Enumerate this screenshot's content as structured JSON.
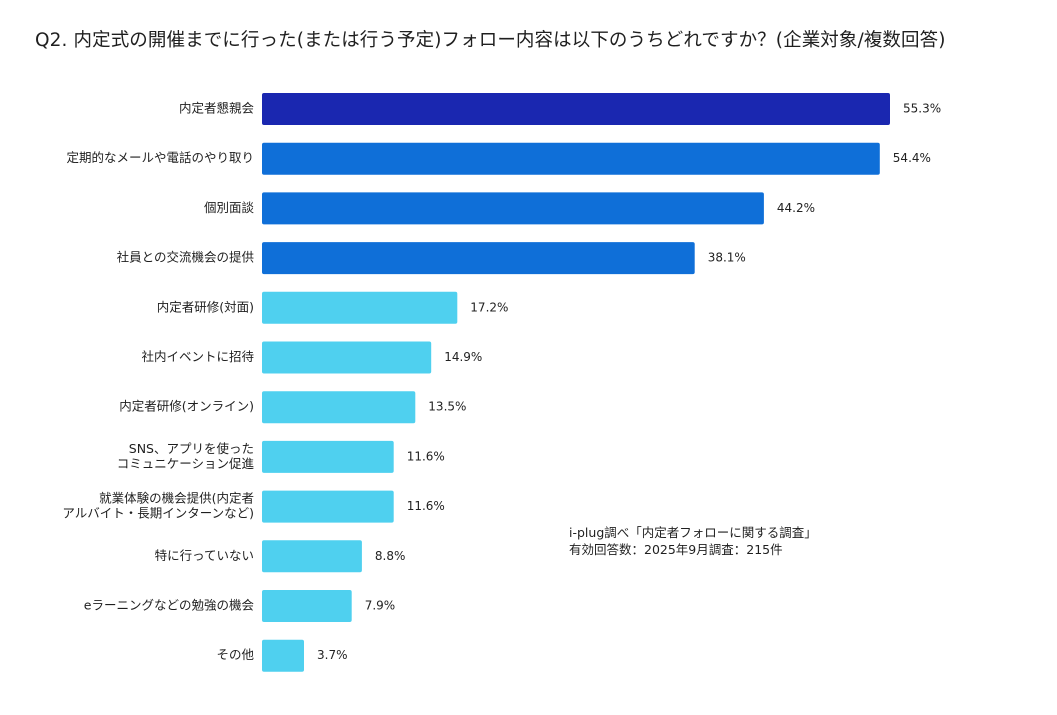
{
  "chart_data": {
    "type": "bar",
    "orientation": "horizontal",
    "title": "Q2. 内定式の開催までに行った(または行う予定)フォロー内容は以下のうちどれですか？(企業対象/複数回答)",
    "categories": [
      [
        "内定者懇親会"
      ],
      [
        "定期的なメールや電話のやり取り"
      ],
      [
        "個別面談"
      ],
      [
        "社員との交流機会の提供"
      ],
      [
        "内定者研修(対面)"
      ],
      [
        "社内イベントに招待"
      ],
      [
        "内定者研修(オンライン)"
      ],
      [
        "SNS、アプリを使った",
        "コミュニケーション促進"
      ],
      [
        "就業体験の機会提供(内定者",
        "アルバイト・長期インターンなど)"
      ],
      [
        "特に行っていない"
      ],
      [
        "eラーニングなどの勉強の機会"
      ],
      [
        "その他"
      ]
    ],
    "values": [
      55.3,
      54.4,
      44.2,
      38.1,
      17.2,
      14.9,
      13.5,
      11.6,
      11.6,
      8.8,
      7.9,
      3.7
    ],
    "value_labels": [
      "55.3%",
      "54.4%",
      "44.2%",
      "38.1%",
      "17.2%",
      "14.9%",
      "13.5%",
      "11.6%",
      "11.6%",
      "8.8%",
      "7.9%",
      "3.7%"
    ],
    "colors": [
      "#1a27b0",
      "#0f6fd8",
      "#0f6fd8",
      "#0f6fd8",
      "#4fd0ef",
      "#4fd0ef",
      "#4fd0ef",
      "#4fd0ef",
      "#4fd0ef",
      "#4fd0ef",
      "#4fd0ef",
      "#4fd0ef"
    ],
    "xlim": [
      0,
      55.3
    ],
    "unit": "%",
    "grid": false,
    "legend": "none"
  },
  "source": {
    "line1": "i-plug調べ「内定者フォローに関する調査」",
    "line2": "有効回答数：2025年9月調査：215件"
  }
}
